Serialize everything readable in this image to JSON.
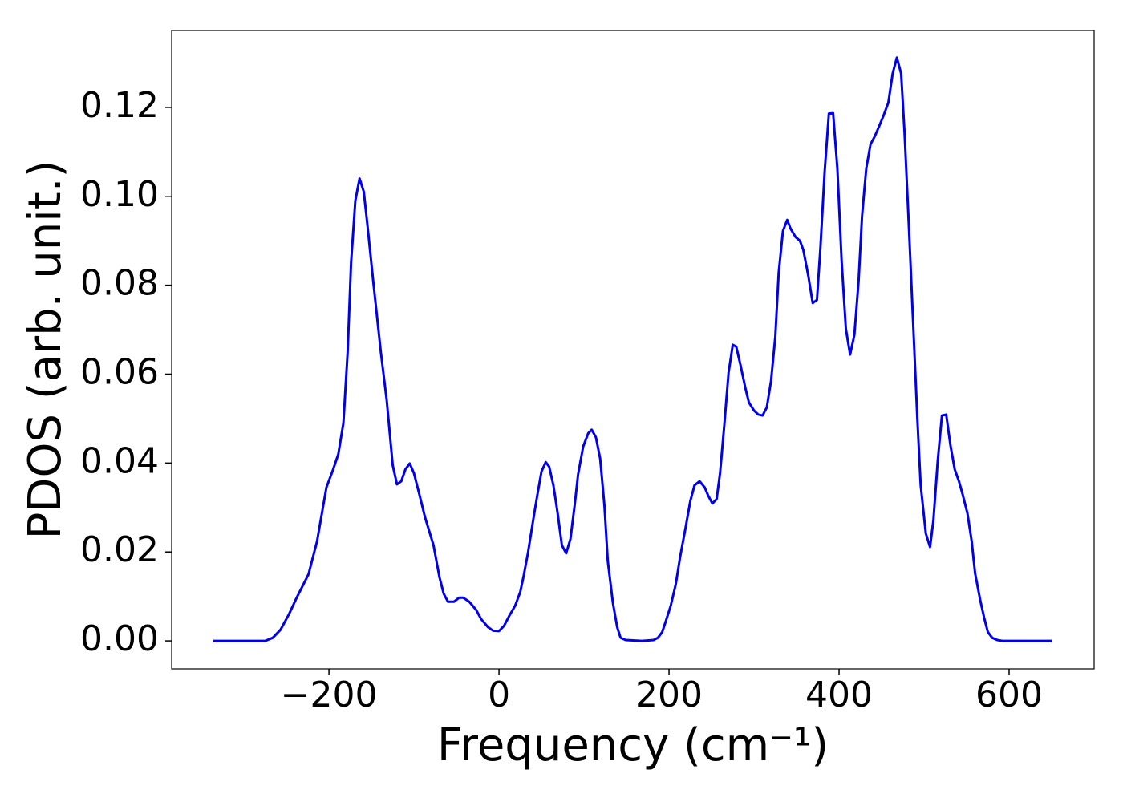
{
  "chart_data": {
    "type": "line",
    "xlabel": "Frequency (cm⁻¹)",
    "ylabel": "PDOS (arb. unit.)",
    "xlim": [
      -385,
      700
    ],
    "ylim": [
      -0.0063,
      0.1373
    ],
    "xticks": [
      {
        "value": -200,
        "label": "−200"
      },
      0,
      200,
      400,
      600
    ],
    "yticks": [
      {
        "value": 0,
        "label": "0.00"
      },
      {
        "value": 0.02,
        "label": "0.02"
      },
      {
        "value": 0.04,
        "label": "0.04"
      },
      {
        "value": 0.06,
        "label": "0.06"
      },
      {
        "value": 0.08,
        "label": "0.08"
      },
      {
        "value": 0.1,
        "label": "0.10"
      },
      {
        "value": 0.12,
        "label": "0.12"
      }
    ],
    "grid": false,
    "x": [
      -336,
      -275,
      -266,
      -257,
      -247,
      -238,
      -224,
      -214,
      -203,
      -195,
      -189,
      -183,
      -178,
      -174,
      -169,
      -164,
      -159,
      -155,
      -148,
      -139,
      -132,
      -125,
      -120,
      -115,
      -110,
      -105,
      -100,
      -94,
      -87,
      -77,
      -70,
      -65,
      -60,
      -53,
      -47,
      -42,
      -35,
      -27,
      -21,
      -13,
      -7,
      0,
      6,
      12,
      19,
      25,
      29,
      34,
      40,
      45,
      50,
      55,
      59,
      64,
      69,
      74,
      79,
      84,
      89,
      93,
      99,
      105,
      109,
      114,
      119,
      124,
      128,
      134,
      139,
      143,
      149,
      168,
      182,
      187,
      192,
      196,
      202,
      208,
      213,
      220,
      225,
      230,
      236,
      242,
      246,
      251,
      256,
      260,
      265,
      270,
      275,
      279,
      284,
      290,
      294,
      300,
      305,
      310,
      315,
      320,
      325,
      329,
      334,
      339,
      343,
      349,
      354,
      358,
      364,
      369,
      374,
      378,
      383,
      388,
      393,
      398,
      403,
      408,
      413,
      418,
      423,
      427,
      432,
      437,
      442,
      447,
      452,
      458,
      463,
      468,
      473,
      477,
      482,
      487,
      492,
      496,
      502,
      507,
      511,
      516,
      521,
      526,
      531,
      536,
      541,
      545,
      551,
      556,
      560,
      566,
      571,
      575,
      580,
      586,
      592,
      650
    ],
    "series": [
      {
        "name": "PDOS",
        "color": "#0000ee",
        "values": [
          0,
          0,
          0.0007,
          0.0025,
          0.006,
          0.0097,
          0.015,
          0.0224,
          0.0345,
          0.0386,
          0.042,
          0.049,
          0.065,
          0.085,
          0.099,
          0.104,
          0.101,
          0.094,
          0.081,
          0.065,
          0.054,
          0.0395,
          0.0352,
          0.0359,
          0.0386,
          0.0399,
          0.0377,
          0.0332,
          0.0278,
          0.0215,
          0.0143,
          0.0106,
          0.0088,
          0.0088,
          0.0097,
          0.0097,
          0.0088,
          0.007,
          0.0049,
          0.0031,
          0.0023,
          0.0022,
          0.0034,
          0.0056,
          0.0079,
          0.011,
          0.0146,
          0.0197,
          0.0269,
          0.0327,
          0.0381,
          0.0402,
          0.0392,
          0.035,
          0.0287,
          0.0215,
          0.0197,
          0.0229,
          0.0305,
          0.0374,
          0.0437,
          0.0467,
          0.0475,
          0.0458,
          0.041,
          0.0305,
          0.0179,
          0.0085,
          0.0031,
          0.0007,
          0.0002,
          0,
          0.0002,
          0.0007,
          0.002,
          0.0043,
          0.0079,
          0.0128,
          0.0188,
          0.026,
          0.0314,
          0.035,
          0.0359,
          0.0345,
          0.0327,
          0.0309,
          0.0319,
          0.0377,
          0.0485,
          0.0603,
          0.0666,
          0.0662,
          0.0621,
          0.0567,
          0.0536,
          0.0518,
          0.0509,
          0.0507,
          0.0525,
          0.0585,
          0.0684,
          0.0828,
          0.0922,
          0.0947,
          0.0927,
          0.0908,
          0.09,
          0.0879,
          0.0819,
          0.076,
          0.0767,
          0.0882,
          0.1054,
          0.1186,
          0.1187,
          0.1063,
          0.0855,
          0.0702,
          0.0644,
          0.0688,
          0.081,
          0.0955,
          0.1063,
          0.1117,
          0.1135,
          0.1157,
          0.118,
          0.1211,
          0.1276,
          0.1312,
          0.1276,
          0.1144,
          0.0937,
          0.072,
          0.0503,
          0.035,
          0.0242,
          0.0211,
          0.0272,
          0.0404,
          0.0507,
          0.0509,
          0.044,
          0.0386,
          0.0359,
          0.0332,
          0.0287,
          0.0224,
          0.0152,
          0.0092,
          0.0049,
          0.002,
          0.0007,
          0.0002,
          0,
          0
        ]
      }
    ]
  }
}
